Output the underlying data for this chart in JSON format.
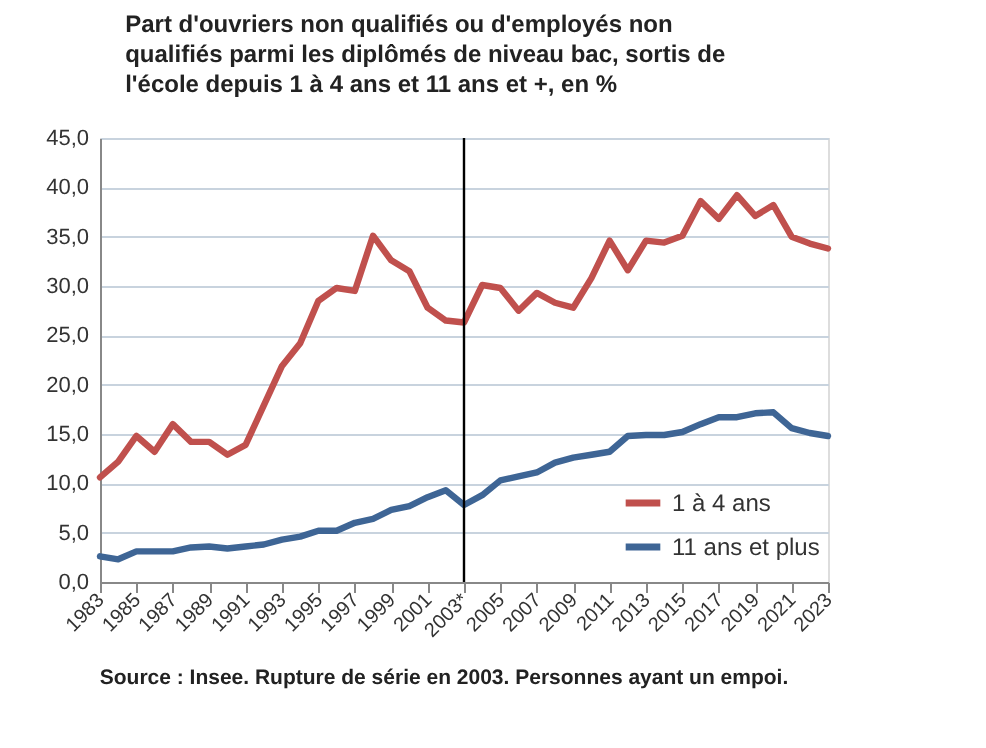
{
  "chart_data": {
    "type": "line",
    "title": [
      "Part d'ouvriers non qualifiés ou d'employés non",
      "qualifiés parmi les diplômés de niveau bac, sortis de",
      "l'école depuis 1 à 4 ans et 11 ans et +, en %"
    ],
    "x": [
      1983,
      1984,
      1985,
      1986,
      1987,
      1988,
      1989,
      1990,
      1991,
      1992,
      1993,
      1994,
      1995,
      1996,
      1997,
      1998,
      1999,
      2000,
      2001,
      2002,
      2003,
      2004,
      2005,
      2006,
      2007,
      2008,
      2009,
      2010,
      2011,
      2012,
      2013,
      2014,
      2015,
      2016,
      2017,
      2018,
      2019,
      2020,
      2021,
      2022,
      2023
    ],
    "series": [
      {
        "name": "1 à 4 ans",
        "color": "#c0504d",
        "values": [
          10.6,
          12.2,
          14.8,
          13.2,
          16.0,
          14.2,
          14.2,
          12.9,
          13.9,
          17.9,
          21.9,
          24.2,
          28.5,
          29.8,
          29.5,
          35.1,
          32.6,
          31.5,
          27.8,
          26.5,
          26.3,
          30.1,
          29.8,
          27.5,
          29.3,
          28.3,
          27.8,
          30.8,
          34.6,
          31.6,
          34.6,
          34.4,
          35.1,
          38.6,
          36.8,
          39.2,
          37.1,
          38.2,
          35.0,
          34.3,
          33.8
        ]
      },
      {
        "name": "11 ans et plus",
        "color": "#3e6595",
        "values": [
          2.6,
          2.3,
          3.1,
          3.1,
          3.1,
          3.5,
          3.6,
          3.4,
          3.6,
          3.8,
          4.3,
          4.6,
          5.2,
          5.2,
          6.0,
          6.4,
          7.3,
          7.7,
          8.6,
          9.3,
          7.8,
          8.8,
          10.3,
          10.7,
          11.1,
          12.1,
          12.6,
          12.9,
          13.2,
          14.8,
          14.9,
          14.9,
          15.2,
          16.0,
          16.7,
          16.7,
          17.1,
          17.2,
          15.6,
          15.1,
          14.8
        ]
      }
    ],
    "xlim": [
      1983,
      2023
    ],
    "xticks": [
      1983,
      1985,
      1987,
      1989,
      1991,
      1993,
      1995,
      1997,
      1999,
      2001,
      {
        "value": 2003,
        "label": "2003*"
      },
      2005,
      2007,
      2009,
      2011,
      2013,
      2015,
      2017,
      2019,
      2021,
      2023
    ],
    "ylim": [
      0,
      45
    ],
    "yticks": [
      {
        "value": 0,
        "label": "0,0"
      },
      {
        "value": 5,
        "label": "5,0"
      },
      {
        "value": 10,
        "label": "10,0"
      },
      {
        "value": 15,
        "label": "15,0"
      },
      {
        "value": 20,
        "label": "20,0"
      },
      {
        "value": 25,
        "label": "25,0"
      },
      {
        "value": 30,
        "label": "30,0"
      },
      {
        "value": 35,
        "label": "35,0"
      },
      {
        "value": 40,
        "label": "40,0"
      },
      {
        "value": 45,
        "label": "45,0"
      }
    ],
    "ref_lines": [
      {
        "axis": "x",
        "value": 2003,
        "color": "#000000"
      }
    ],
    "annotations": [
      "Source : Insee. Rupture de série en 2003. Personnes ayant un empoi."
    ],
    "grid": "y",
    "legend": "bottom right",
    "line_style": "solid",
    "marker": "none"
  }
}
